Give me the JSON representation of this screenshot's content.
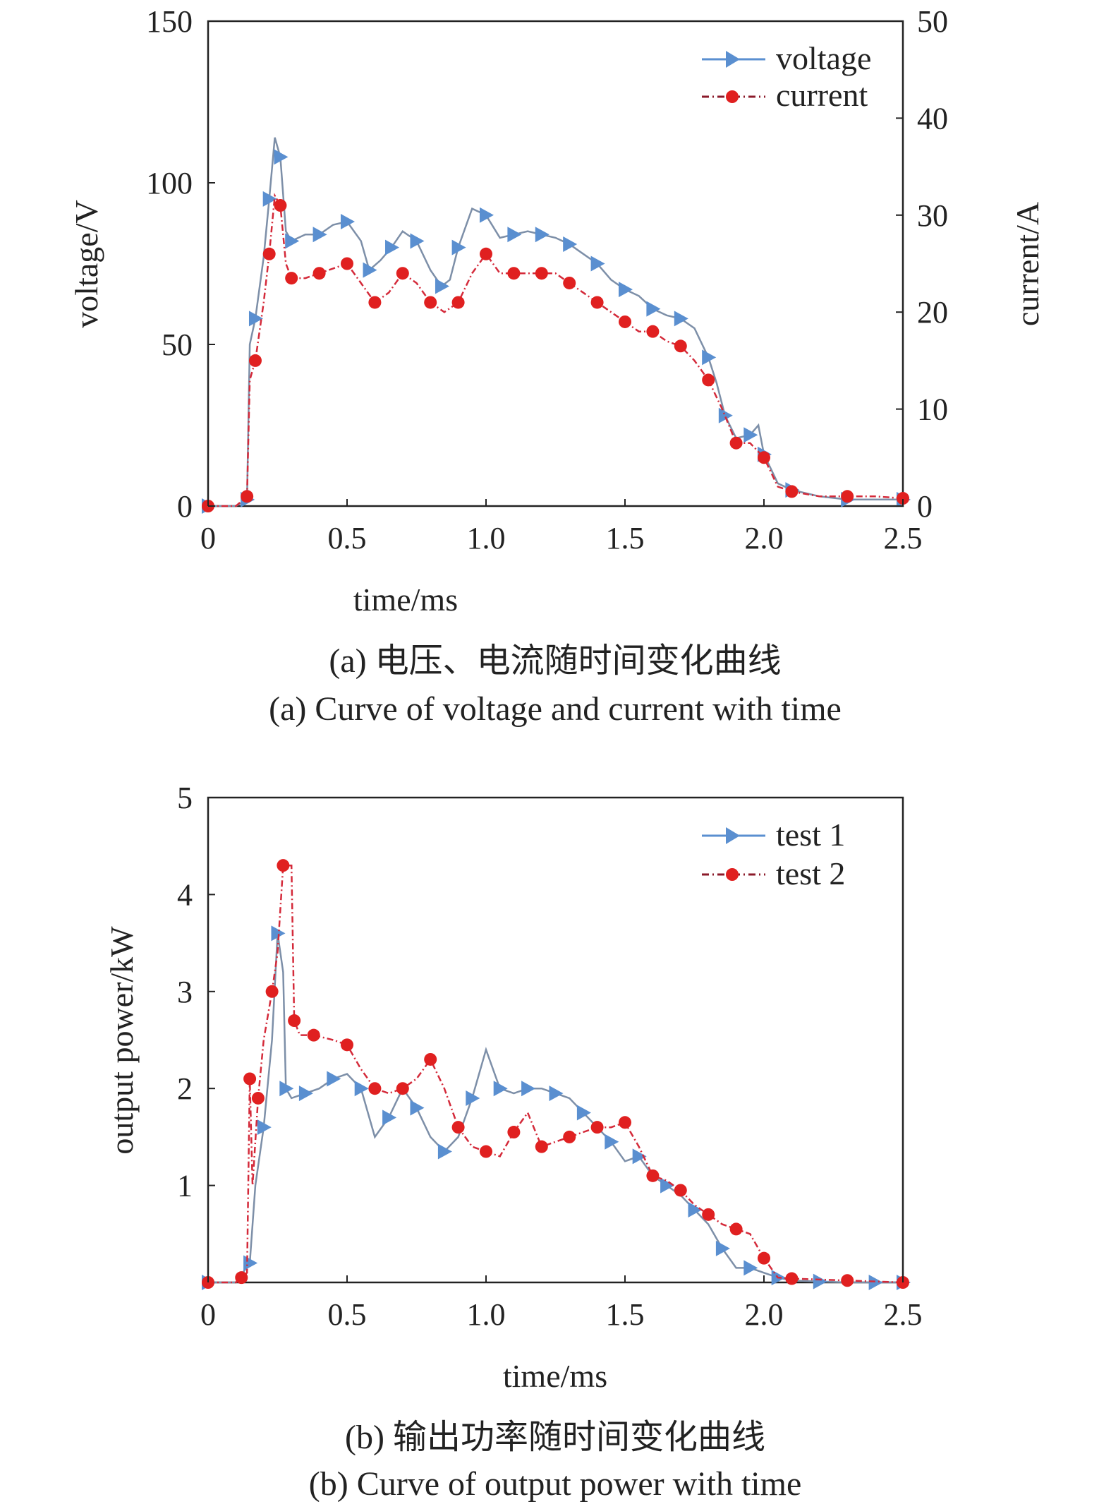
{
  "chart_data": [
    {
      "type": "line",
      "caption_cn": "(a) 电压、电流随时间变化曲线",
      "caption_en": "(a) Curve of voltage and current with time",
      "xlabel": "time/ms",
      "ylabel_left": "voltage/V",
      "ylabel_right": "current/A",
      "xlim": [
        0,
        2.5
      ],
      "ylim_left": [
        0,
        150
      ],
      "ylim_right": [
        0,
        50
      ],
      "xticks": [
        "0",
        "0.5",
        "1.0",
        "1.5",
        "2.0",
        "2.5"
      ],
      "yticks_left": [
        "0",
        "50",
        "100",
        "150"
      ],
      "yticks_right": [
        "0",
        "10",
        "20",
        "30",
        "40",
        "50"
      ],
      "legend_position": "top-right",
      "grid": false,
      "series": [
        {
          "name": "voltage",
          "axis": "left",
          "color": "#5a8fd0",
          "marker": "triangle",
          "x": [
            0,
            0.1,
            0.14,
            0.15,
            0.17,
            0.2,
            0.22,
            0.24,
            0.26,
            0.28,
            0.3,
            0.35,
            0.4,
            0.45,
            0.5,
            0.55,
            0.58,
            0.62,
            0.66,
            0.7,
            0.75,
            0.8,
            0.84,
            0.87,
            0.9,
            0.95,
            1.0,
            1.05,
            1.1,
            1.15,
            1.2,
            1.25,
            1.3,
            1.35,
            1.4,
            1.45,
            1.5,
            1.55,
            1.6,
            1.65,
            1.7,
            1.75,
            1.8,
            1.83,
            1.86,
            1.9,
            1.95,
            1.98,
            2.0,
            2.05,
            2.1,
            2.2,
            2.3,
            2.4,
            2.5
          ],
          "values": [
            0,
            0,
            2,
            50,
            58,
            77,
            95,
            114,
            108,
            85,
            82,
            84,
            84,
            87,
            88,
            82,
            73,
            76,
            80,
            85,
            82,
            73,
            68,
            70,
            80,
            92,
            90,
            83,
            84,
            85,
            84,
            83,
            81,
            78,
            75,
            70,
            67,
            65,
            61,
            59,
            58,
            55,
            46,
            38,
            28,
            21,
            22,
            25,
            16,
            7,
            5,
            3,
            2,
            2,
            2
          ]
        },
        {
          "name": "current",
          "axis": "right",
          "color": "#e02020",
          "marker": "circle",
          "x": [
            0,
            0.1,
            0.14,
            0.15,
            0.17,
            0.2,
            0.22,
            0.24,
            0.26,
            0.28,
            0.3,
            0.35,
            0.4,
            0.45,
            0.5,
            0.55,
            0.6,
            0.65,
            0.7,
            0.75,
            0.8,
            0.85,
            0.9,
            0.95,
            1.0,
            1.05,
            1.1,
            1.15,
            1.2,
            1.25,
            1.3,
            1.35,
            1.4,
            1.45,
            1.5,
            1.55,
            1.6,
            1.65,
            1.7,
            1.75,
            1.8,
            1.85,
            1.9,
            1.95,
            2.0,
            2.05,
            2.1,
            2.2,
            2.3,
            2.4,
            2.5
          ],
          "values": [
            0,
            0,
            1,
            13,
            15,
            21,
            26,
            32,
            31,
            25,
            23.5,
            23.5,
            24,
            24.5,
            25,
            23,
            21,
            22,
            24,
            23,
            21,
            20,
            21,
            24,
            26,
            24,
            24,
            24,
            24,
            24,
            23,
            22,
            21,
            20,
            19,
            18,
            18,
            17,
            16.5,
            15,
            13,
            10,
            6.5,
            6.5,
            5,
            2,
            1.5,
            1,
            1,
            1,
            0.8
          ]
        }
      ]
    },
    {
      "type": "line",
      "caption_cn": "(b) 输出功率随时间变化曲线",
      "caption_en": "(b) Curve of output power with time",
      "xlabel": "time/ms",
      "ylabel": "output power/kW",
      "xlim": [
        0,
        2.5
      ],
      "ylim": [
        0,
        5
      ],
      "xticks": [
        "0",
        "0.5",
        "1.0",
        "1.5",
        "2.0",
        "2.5"
      ],
      "yticks": [
        "1",
        "2",
        "3",
        "4",
        "5"
      ],
      "legend_position": "top-right",
      "grid": false,
      "series": [
        {
          "name": "test 1",
          "color": "#5a8fd0",
          "marker": "triangle",
          "x": [
            0,
            0.1,
            0.15,
            0.17,
            0.2,
            0.23,
            0.25,
            0.27,
            0.28,
            0.3,
            0.35,
            0.4,
            0.45,
            0.5,
            0.55,
            0.6,
            0.65,
            0.7,
            0.75,
            0.8,
            0.85,
            0.9,
            0.95,
            1.0,
            1.05,
            1.1,
            1.15,
            1.2,
            1.25,
            1.3,
            1.35,
            1.4,
            1.45,
            1.5,
            1.55,
            1.6,
            1.65,
            1.7,
            1.75,
            1.8,
            1.85,
            1.9,
            1.95,
            2.0,
            2.05,
            2.1,
            2.2,
            2.3,
            2.4,
            2.5
          ],
          "values": [
            0,
            0,
            0.2,
            1.0,
            1.6,
            2.5,
            3.6,
            3.2,
            2.0,
            1.9,
            1.95,
            2.0,
            2.1,
            2.15,
            2.0,
            1.5,
            1.7,
            2.0,
            1.8,
            1.5,
            1.35,
            1.5,
            1.9,
            2.4,
            2.0,
            1.95,
            2.0,
            2.0,
            1.95,
            1.9,
            1.75,
            1.6,
            1.45,
            1.25,
            1.3,
            1.1,
            1.0,
            0.9,
            0.75,
            0.6,
            0.35,
            0.15,
            0.15,
            0.1,
            0.05,
            0.02,
            0.01,
            0,
            0,
            0
          ]
        },
        {
          "name": "test 2",
          "color": "#e02020",
          "marker": "circle",
          "x": [
            0,
            0.1,
            0.12,
            0.14,
            0.15,
            0.16,
            0.18,
            0.2,
            0.23,
            0.25,
            0.27,
            0.3,
            0.31,
            0.33,
            0.38,
            0.45,
            0.5,
            0.55,
            0.6,
            0.65,
            0.7,
            0.75,
            0.8,
            0.85,
            0.9,
            0.95,
            1.0,
            1.05,
            1.1,
            1.15,
            1.2,
            1.25,
            1.3,
            1.35,
            1.4,
            1.45,
            1.5,
            1.55,
            1.6,
            1.65,
            1.7,
            1.75,
            1.8,
            1.85,
            1.9,
            1.95,
            2.0,
            2.05,
            2.1,
            2.2,
            2.3,
            2.4,
            2.5
          ],
          "values": [
            0,
            0,
            0.05,
            0.1,
            2.1,
            1.0,
            1.9,
            2.5,
            3.0,
            3.4,
            4.3,
            4.3,
            2.7,
            2.55,
            2.55,
            2.5,
            2.45,
            2.2,
            2.0,
            1.95,
            2.0,
            2.1,
            2.3,
            2.0,
            1.6,
            1.4,
            1.35,
            1.3,
            1.55,
            1.75,
            1.4,
            1.45,
            1.5,
            1.55,
            1.6,
            1.6,
            1.65,
            1.4,
            1.1,
            1.05,
            0.95,
            0.8,
            0.7,
            0.6,
            0.55,
            0.5,
            0.25,
            0.05,
            0.04,
            0.03,
            0.02,
            0.01,
            0
          ]
        }
      ]
    }
  ]
}
